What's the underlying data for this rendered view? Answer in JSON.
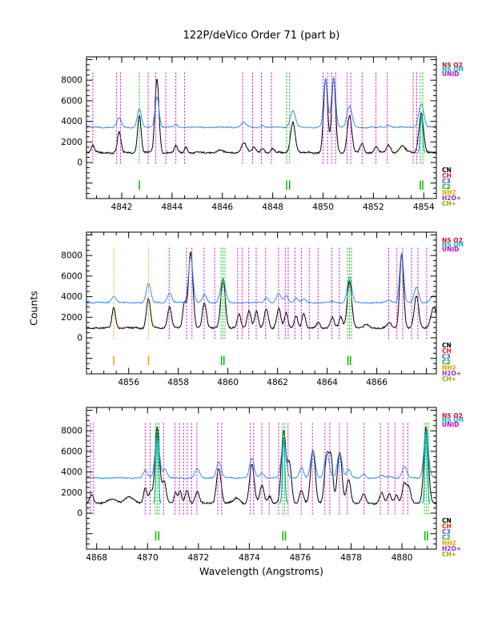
{
  "title": "122P/deVico Order 71 (part b)",
  "xlabel": "Wavelength (Angstroms)",
  "ylabel": "Counts",
  "legend_top": [
    {
      "label": "NS O2",
      "color": "#e50030"
    },
    {
      "label": "NS OH",
      "color": "#00b8b8"
    },
    {
      "label": "UNID",
      "color": "#cc00cc"
    }
  ],
  "legend_species": [
    {
      "label": "CN",
      "color": "#000000"
    },
    {
      "label": "CH",
      "color": "#ee2200"
    },
    {
      "label": "C3",
      "color": "#3355ff"
    },
    {
      "label": "C2",
      "color": "#00bb00"
    },
    {
      "label": "NH2",
      "color": "#ff9900"
    },
    {
      "label": "H2O+",
      "color": "#7d33dd"
    },
    {
      "label": "CH+",
      "color": "#a0a000"
    }
  ],
  "chart_data": {
    "type": "line",
    "title": "122P/deVico Order 71 (part b)",
    "xlabel": "Wavelength (Angstroms)",
    "ylabel": "Counts",
    "ylim": [
      -3500,
      10300
    ],
    "yticks": [
      0,
      2000,
      4000,
      6000,
      8000
    ],
    "grid": false,
    "series": [
      {
        "name": "comet-spectrum",
        "color": "#000000",
        "baseline": 950
      },
      {
        "name": "sky-spectrum",
        "color": "#2f90ff",
        "baseline": 3420
      }
    ],
    "panels": [
      {
        "xlim": [
          4840.6,
          4854.5
        ],
        "xticks": [
          4842,
          4844,
          4846,
          4848,
          4850,
          4852,
          4854
        ],
        "id_lines": [
          {
            "species": "UNID",
            "color": "#cc00cc",
            "wavelengths": [
              4840.85,
              4841.8,
              4841.95,
              4843.05,
              4843.35,
              4843.75,
              4844.15,
              4844.5,
              4846.8,
              4847.2,
              4847.55,
              4847.95,
              4850.0,
              4850.18,
              4850.34,
              4850.5,
              4850.95,
              4851.1,
              4851.55,
              4852.1,
              4852.55,
              4853.58,
              4853.72
            ]
          },
          {
            "species": "C2",
            "color": "#00bb00",
            "wavelengths": [
              4842.7,
              4848.55,
              4848.67,
              4853.86,
              4853.96
            ]
          }
        ],
        "marks": [
          {
            "wl": 4842.7,
            "color": "#00bb00"
          },
          {
            "wl": 4848.55,
            "color": "#00bb00"
          },
          {
            "wl": 4848.67,
            "color": "#00bb00"
          },
          {
            "wl": 4853.86,
            "color": "#00bb00"
          },
          {
            "wl": 4853.96,
            "color": "#00bb00"
          }
        ],
        "comet_peaks": [
          [
            4840.85,
            1700,
            0.06
          ],
          [
            4841.9,
            2950,
            0.07
          ],
          [
            4842.7,
            4550,
            0.07
          ],
          [
            4843.4,
            8100,
            0.08
          ],
          [
            4844.15,
            1650,
            0.06
          ],
          [
            4844.55,
            1500,
            0.06
          ],
          [
            4845.9,
            1200,
            0.12
          ],
          [
            4846.85,
            1950,
            0.1
          ],
          [
            4847.25,
            1500,
            0.07
          ],
          [
            4847.6,
            1450,
            0.06
          ],
          [
            4848.0,
            1350,
            0.07
          ],
          [
            4848.8,
            3950,
            0.09
          ],
          [
            4850.1,
            8150,
            0.08
          ],
          [
            4850.42,
            8250,
            0.08
          ],
          [
            4851.05,
            4500,
            0.09
          ],
          [
            4851.55,
            1900,
            0.07
          ],
          [
            4852.1,
            1550,
            0.07
          ],
          [
            4852.6,
            1650,
            0.09
          ],
          [
            4853.15,
            1600,
            0.12
          ],
          [
            4853.9,
            4850,
            0.09
          ]
        ],
        "sky_peaks": [
          [
            4841.9,
            4300,
            0.09
          ],
          [
            4842.7,
            5200,
            0.08
          ],
          [
            4843.4,
            6400,
            0.08
          ],
          [
            4844.15,
            3700,
            0.06
          ],
          [
            4846.85,
            3900,
            0.1
          ],
          [
            4847.6,
            3650,
            0.06
          ],
          [
            4848.8,
            5050,
            0.1
          ],
          [
            4850.1,
            8150,
            0.08
          ],
          [
            4850.42,
            8300,
            0.08
          ],
          [
            4851.05,
            5450,
            0.1
          ],
          [
            4852.6,
            3620,
            0.08
          ],
          [
            4853.9,
            5700,
            0.1
          ]
        ],
        "spikes": [
          [
            4853.91,
            4600,
            "#00b8b8"
          ]
        ]
      },
      {
        "xlim": [
          4854.3,
          4868.4
        ],
        "xticks": [
          4856,
          4858,
          4860,
          4862,
          4864,
          4866
        ],
        "id_lines": [
          {
            "species": "NH2",
            "color": "#ff9900",
            "wavelengths": [
              4855.4,
              4856.8
            ]
          },
          {
            "species": "UNID",
            "color": "#cc00cc",
            "wavelengths": [
              4857.63,
              4858.33,
              4858.55,
              4859.04,
              4859.47,
              4860.39,
              4860.57,
              4860.84,
              4861.14,
              4861.52,
              4862.04,
              4862.31,
              4862.43,
              4862.7,
              4862.96,
              4863.28,
              4863.63,
              4864.19,
              4864.49,
              4866.48,
              4866.81,
              4867.04,
              4867.4,
              4867.66,
              4868.01
            ]
          },
          {
            "species": "C2",
            "color": "#00bb00",
            "wavelengths": [
              4859.72,
              4859.8,
              4859.88,
              4864.82,
              4864.9,
              4864.98
            ]
          }
        ],
        "marks": [
          {
            "wl": 4855.4,
            "color": "#ff9900"
          },
          {
            "wl": 4856.8,
            "color": "#ff9900"
          },
          {
            "wl": 4859.74,
            "color": "#00bb00"
          },
          {
            "wl": 4859.84,
            "color": "#00bb00"
          },
          {
            "wl": 4864.84,
            "color": "#00bb00"
          },
          {
            "wl": 4864.94,
            "color": "#00bb00"
          }
        ],
        "comet_peaks": [
          [
            4855.4,
            2950,
            0.07
          ],
          [
            4856.8,
            3850,
            0.08
          ],
          [
            4857.65,
            3050,
            0.08
          ],
          [
            4858.25,
            3300,
            0.07
          ],
          [
            4858.5,
            8400,
            0.09
          ],
          [
            4859.05,
            3400,
            0.08
          ],
          [
            4859.8,
            5750,
            0.09
          ],
          [
            4860.45,
            2300,
            0.07
          ],
          [
            4860.85,
            2650,
            0.08
          ],
          [
            4861.15,
            2500,
            0.07
          ],
          [
            4861.55,
            2800,
            0.08
          ],
          [
            4862.05,
            2850,
            0.08
          ],
          [
            4862.35,
            2350,
            0.07
          ],
          [
            4862.75,
            2150,
            0.07
          ],
          [
            4863.05,
            2350,
            0.07
          ],
          [
            4863.65,
            1550,
            0.07
          ],
          [
            4864.2,
            1950,
            0.08
          ],
          [
            4864.55,
            2050,
            0.07
          ],
          [
            4864.9,
            5600,
            0.09
          ],
          [
            4865.6,
            1300,
            0.1
          ],
          [
            4866.5,
            1500,
            0.08
          ],
          [
            4867.0,
            8150,
            0.08
          ],
          [
            4867.6,
            4050,
            0.09
          ],
          [
            4868.3,
            2900,
            0.12
          ]
        ],
        "sky_peaks": [
          [
            4855.4,
            4050,
            0.09
          ],
          [
            4856.8,
            5250,
            0.09
          ],
          [
            4857.65,
            4350,
            0.09
          ],
          [
            4858.5,
            7900,
            0.09
          ],
          [
            4859.05,
            4200,
            0.08
          ],
          [
            4859.8,
            5650,
            0.1
          ],
          [
            4861.55,
            3900,
            0.08
          ],
          [
            4862.05,
            4250,
            0.09
          ],
          [
            4862.35,
            4100,
            0.08
          ],
          [
            4862.75,
            3850,
            0.08
          ],
          [
            4863.05,
            3750,
            0.08
          ],
          [
            4864.2,
            3550,
            0.08
          ],
          [
            4864.9,
            5950,
            0.09
          ],
          [
            4866.5,
            3700,
            0.09
          ],
          [
            4867.0,
            8250,
            0.08
          ],
          [
            4867.6,
            4950,
            0.09
          ],
          [
            4868.3,
            4100,
            0.12
          ]
        ],
        "spikes": []
      },
      {
        "xlim": [
          4867.6,
          4881.35
        ],
        "xticks": [
          4868,
          4870,
          4872,
          4874,
          4876,
          4878,
          4880
        ],
        "id_lines": [
          {
            "species": "UNID",
            "color": "#cc00cc",
            "wavelengths": [
              4867.76,
              4867.88,
              4869.91,
              4870.1,
              4870.63,
              4871.08,
              4871.26,
              4871.42,
              4871.56,
              4871.73,
              4871.94,
              4872.76,
              4872.91,
              4874.04,
              4874.17,
              4874.49,
              4874.78,
              4875.15,
              4875.52,
              4876.04,
              4876.48,
              4876.97,
              4877.16,
              4877.54,
              4877.85,
              4878.51,
              4879.15,
              4879.46,
              4879.72,
              4880.04,
              4880.23
            ]
          },
          {
            "species": "C2",
            "color": "#00bb00",
            "wavelengths": [
              4870.3,
              4870.38,
              4870.46,
              4875.31,
              4875.39,
              4880.88,
              4880.96,
              4881.04
            ]
          }
        ],
        "marks": [
          {
            "wl": 4870.32,
            "color": "#00bb00"
          },
          {
            "wl": 4870.44,
            "color": "#00bb00"
          },
          {
            "wl": 4875.32,
            "color": "#00bb00"
          },
          {
            "wl": 4875.42,
            "color": "#00bb00"
          },
          {
            "wl": 4880.9,
            "color": "#00bb00"
          },
          {
            "wl": 4881.0,
            "color": "#00bb00"
          }
        ],
        "comet_peaks": [
          [
            4867.8,
            1850,
            0.07
          ],
          [
            4868.6,
            1450,
            0.15
          ],
          [
            4869.3,
            1550,
            0.18
          ],
          [
            4869.91,
            2450,
            0.07
          ],
          [
            4870.12,
            2050,
            0.06
          ],
          [
            4870.38,
            8350,
            0.09
          ],
          [
            4870.65,
            3100,
            0.08
          ],
          [
            4871.1,
            1950,
            0.06
          ],
          [
            4871.28,
            2150,
            0.06
          ],
          [
            4871.55,
            2250,
            0.07
          ],
          [
            4871.95,
            2050,
            0.08
          ],
          [
            4872.8,
            4350,
            0.09
          ],
          [
            4873.5,
            1500,
            0.12
          ],
          [
            4874.1,
            4750,
            0.09
          ],
          [
            4874.5,
            2700,
            0.08
          ],
          [
            4874.8,
            1650,
            0.07
          ],
          [
            4875.35,
            7900,
            0.09
          ],
          [
            4875.58,
            4700,
            0.08
          ],
          [
            4876.05,
            2150,
            0.08
          ],
          [
            4876.5,
            6100,
            0.09
          ],
          [
            4877.05,
            5700,
            0.09
          ],
          [
            4877.22,
            4800,
            0.07
          ],
          [
            4877.55,
            5900,
            0.09
          ],
          [
            4877.9,
            3300,
            0.08
          ],
          [
            4878.5,
            1850,
            0.08
          ],
          [
            4879.2,
            1950,
            0.08
          ],
          [
            4879.5,
            1850,
            0.07
          ],
          [
            4879.78,
            1750,
            0.07
          ],
          [
            4880.1,
            2950,
            0.09
          ],
          [
            4880.28,
            2300,
            0.07
          ],
          [
            4880.95,
            8450,
            0.09
          ]
        ],
        "sky_peaks": [
          [
            4869.91,
            4150,
            0.08
          ],
          [
            4870.38,
            7500,
            0.09
          ],
          [
            4870.68,
            4300,
            0.08
          ],
          [
            4871.95,
            4300,
            0.09
          ],
          [
            4872.8,
            4950,
            0.09
          ],
          [
            4874.1,
            5300,
            0.09
          ],
          [
            4874.5,
            3900,
            0.08
          ],
          [
            4875.35,
            7100,
            0.09
          ],
          [
            4876.05,
            4400,
            0.08
          ],
          [
            4876.5,
            6100,
            0.09
          ],
          [
            4877.05,
            5800,
            0.09
          ],
          [
            4877.55,
            5950,
            0.09
          ],
          [
            4877.9,
            4250,
            0.08
          ],
          [
            4878.5,
            3800,
            0.08
          ],
          [
            4879.2,
            3650,
            0.08
          ],
          [
            4879.5,
            3600,
            0.08
          ],
          [
            4880.1,
            4500,
            0.09
          ],
          [
            4880.95,
            7900,
            0.09
          ]
        ],
        "spikes": [
          [
            4870.38,
            7800,
            "#00b8b8"
          ],
          [
            4875.35,
            7400,
            "#00b8b8"
          ],
          [
            4880.95,
            8100,
            "#00b8b8"
          ]
        ]
      }
    ]
  }
}
